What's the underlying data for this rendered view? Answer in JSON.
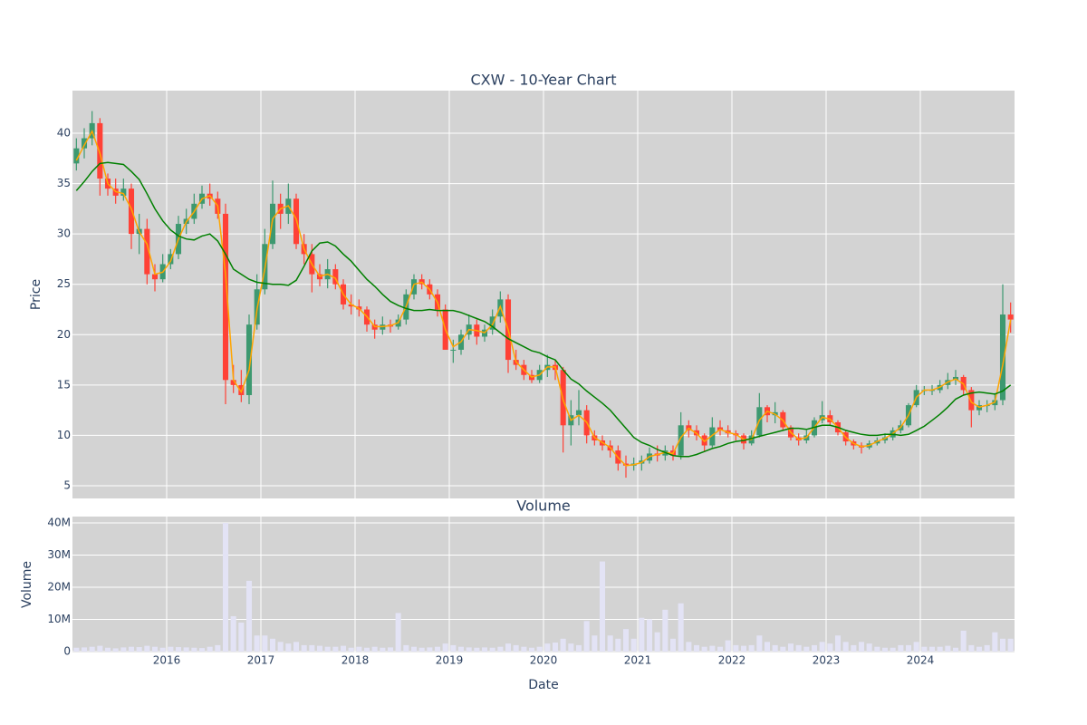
{
  "chart_data": [
    {
      "type": "candlestick",
      "title": "CXW - 10-Year Chart",
      "y_label": "Price",
      "x": [
        "2015-01",
        "2015-02",
        "2015-03",
        "2015-04",
        "2015-05",
        "2015-06",
        "2015-07",
        "2015-08",
        "2015-09",
        "2015-10",
        "2015-11",
        "2015-12",
        "2016-01",
        "2016-02",
        "2016-03",
        "2016-04",
        "2016-05",
        "2016-06",
        "2016-07",
        "2016-08",
        "2016-09",
        "2016-10",
        "2016-11",
        "2016-12",
        "2017-01",
        "2017-02",
        "2017-03",
        "2017-04",
        "2017-05",
        "2017-06",
        "2017-07",
        "2017-08",
        "2017-09",
        "2017-10",
        "2017-11",
        "2017-12",
        "2018-01",
        "2018-02",
        "2018-03",
        "2018-04",
        "2018-05",
        "2018-06",
        "2018-07",
        "2018-08",
        "2018-09",
        "2018-10",
        "2018-11",
        "2018-12",
        "2019-01",
        "2019-02",
        "2019-03",
        "2019-04",
        "2019-05",
        "2019-06",
        "2019-07",
        "2019-08",
        "2019-09",
        "2019-10",
        "2019-11",
        "2019-12",
        "2020-01",
        "2020-02",
        "2020-03",
        "2020-04",
        "2020-05",
        "2020-06",
        "2020-07",
        "2020-08",
        "2020-09",
        "2020-10",
        "2020-11",
        "2020-12",
        "2021-01",
        "2021-02",
        "2021-03",
        "2021-04",
        "2021-05",
        "2021-06",
        "2021-07",
        "2021-08",
        "2021-09",
        "2021-10",
        "2021-11",
        "2021-12",
        "2022-01",
        "2022-02",
        "2022-03",
        "2022-04",
        "2022-05",
        "2022-06",
        "2022-07",
        "2022-08",
        "2022-09",
        "2022-10",
        "2022-11",
        "2022-12",
        "2023-01",
        "2023-02",
        "2023-03",
        "2023-04",
        "2023-05",
        "2023-06",
        "2023-07",
        "2023-08",
        "2023-09",
        "2023-10",
        "2023-11",
        "2023-12",
        "2024-01",
        "2024-02",
        "2024-03",
        "2024-04",
        "2024-05",
        "2024-06",
        "2024-07",
        "2024-08",
        "2024-09",
        "2024-10",
        "2024-11",
        "2024-12"
      ],
      "open": [
        37,
        38.5,
        39.5,
        41,
        35.5,
        34.5,
        33.8,
        34.5,
        30,
        30.5,
        26,
        25.5,
        27,
        28,
        31,
        31.5,
        33,
        34,
        33.5,
        32,
        15.5,
        15,
        14,
        21,
        24.5,
        29,
        33,
        32,
        33.5,
        29,
        28,
        26,
        25.5,
        26.5,
        25,
        23,
        22.8,
        22.5,
        21,
        20.5,
        21,
        20.8,
        21.5,
        24,
        25.5,
        25,
        24,
        22.5,
        18.5,
        18.5,
        20,
        21,
        19.8,
        20.5,
        21.8,
        23.5,
        17.5,
        17,
        16,
        15.5,
        16.5,
        17,
        16.5,
        11,
        12,
        12.5,
        10,
        9.5,
        9,
        8.5,
        7.2,
        7,
        7.2,
        7.5,
        8.2,
        8,
        8.5,
        8,
        11,
        10.5,
        10,
        9,
        10.8,
        10.5,
        10.2,
        10,
        9.2,
        10,
        12.8,
        12,
        12.3,
        10.8,
        9.8,
        9.5,
        10,
        11.5,
        12,
        11.3,
        10.3,
        9.4,
        9,
        8.8,
        9.2,
        9.5,
        9.8,
        10.5,
        11,
        13,
        14.5,
        14.5,
        14.5,
        15,
        15.5,
        15.8,
        14.5,
        12.5,
        13,
        13,
        13.5,
        22
      ],
      "high": [
        39.5,
        40.5,
        42.2,
        41.5,
        36,
        35.5,
        35.5,
        35,
        32,
        31.5,
        27,
        28,
        28.5,
        31.8,
        32.5,
        34,
        34.8,
        35,
        34.2,
        33,
        17,
        16.5,
        22,
        26,
        30.5,
        35.3,
        34,
        35,
        34,
        30,
        29,
        27,
        27.5,
        27,
        25.5,
        24,
        23.5,
        22.8,
        21.5,
        21.8,
        21.5,
        22,
        24.5,
        26,
        26,
        25.5,
        24.5,
        23,
        19.5,
        20.5,
        22,
        21.5,
        21,
        22.5,
        24.3,
        24,
        18.5,
        17.5,
        16.5,
        17,
        18,
        17.5,
        16.8,
        13.5,
        14.5,
        13,
        10.5,
        10,
        9.5,
        9,
        8,
        7.8,
        8,
        8.8,
        9,
        9,
        9,
        12.3,
        11.5,
        11,
        10.2,
        11.8,
        11.5,
        11,
        10.5,
        10.2,
        10.5,
        14.2,
        13,
        13.3,
        12.5,
        11,
        10.2,
        10.5,
        11.8,
        13.4,
        12.5,
        11.5,
        10.5,
        9.6,
        9.3,
        9.5,
        9.8,
        10.2,
        10.8,
        11.5,
        13.2,
        15,
        14.9,
        15,
        15.5,
        16.2,
        16.5,
        16,
        14.8,
        13.5,
        13.5,
        14.2,
        25,
        23.2
      ],
      "low": [
        36.3,
        37.5,
        38.8,
        33.8,
        33.8,
        33,
        33.3,
        28.5,
        28,
        25,
        24.3,
        25.2,
        26.5,
        27.5,
        30,
        31,
        32.5,
        32.8,
        31.5,
        13.1,
        14.2,
        13.3,
        13.1,
        20.5,
        24,
        28.5,
        30.5,
        31,
        28.5,
        27,
        24.2,
        24.8,
        24.6,
        24.5,
        22.5,
        22,
        21.8,
        20.3,
        19.6,
        20,
        20.2,
        20.5,
        21,
        23.5,
        24.5,
        23.5,
        21.8,
        18.6,
        17.2,
        18,
        19.5,
        19,
        19.3,
        20,
        21.2,
        16.2,
        16.5,
        15.5,
        15.2,
        15.2,
        15.8,
        15.5,
        8.3,
        9,
        11,
        9.2,
        9,
        8.5,
        7.8,
        6.5,
        5.8,
        6.5,
        6.5,
        7.2,
        7.4,
        7.5,
        7.5,
        7.6,
        9.8,
        9.5,
        8.4,
        8.8,
        10,
        9.8,
        9.5,
        8.6,
        9,
        9.8,
        11.3,
        11.2,
        10.5,
        9.5,
        9,
        9.2,
        9.8,
        11.2,
        11,
        10,
        9,
        8.6,
        8.2,
        8.6,
        9,
        9.2,
        9.5,
        10.2,
        10.8,
        12.8,
        14,
        14,
        14.2,
        14.6,
        15,
        14,
        10.8,
        12,
        12.3,
        12.5,
        13,
        20.2
      ],
      "close": [
        38.5,
        39.5,
        41,
        35.5,
        34.5,
        33.8,
        34.5,
        30,
        30.5,
        26,
        25.5,
        27,
        28,
        31,
        31.5,
        33,
        34,
        33.5,
        32,
        15.5,
        15,
        14,
        21,
        24.5,
        29,
        33,
        32,
        33.5,
        29,
        28,
        26,
        25.5,
        26.5,
        25,
        23,
        22.8,
        22.5,
        21,
        20.5,
        21,
        20.8,
        21.5,
        24,
        25.5,
        25,
        24,
        22.5,
        18.5,
        18.5,
        20,
        21,
        19.8,
        20.5,
        21.8,
        23.5,
        17.5,
        17,
        16,
        15.5,
        16.5,
        17,
        16.5,
        11,
        12,
        12.5,
        10,
        9.5,
        9,
        8.5,
        7.2,
        7,
        7.2,
        7.5,
        8.2,
        8,
        8.5,
        8,
        11,
        10.5,
        10,
        9,
        10.8,
        10.5,
        10.2,
        10,
        9.2,
        10,
        12.8,
        12,
        12.3,
        10.8,
        9.8,
        9.5,
        10,
        11.5,
        12,
        11.3,
        10.3,
        9.4,
        9,
        8.8,
        9.2,
        9.5,
        9.8,
        10.5,
        11,
        13,
        14.5,
        14.5,
        14.5,
        15,
        15.5,
        15.8,
        14.5,
        12.5,
        13,
        13,
        13.5,
        22,
        21.5
      ],
      "increasing_color": "#3d9970",
      "decreasing_color": "#ff4136",
      "series": [
        {
          "color": "#ffa500",
          "values": [
            37.3,
            38.8,
            40.2,
            38,
            35,
            34.2,
            34,
            32.5,
            30.2,
            29,
            26,
            26.2,
            27.3,
            29.5,
            31.2,
            32.2,
            33.5,
            33.8,
            32.8,
            26,
            15.5,
            14.3,
            16.5,
            22.5,
            26.5,
            31.5,
            32.5,
            32.8,
            31.5,
            28.5,
            27,
            25.8,
            26,
            25.6,
            24,
            23,
            22.6,
            21.8,
            20.8,
            20.8,
            20.9,
            21.2,
            22.8,
            25,
            25.2,
            24.5,
            23.2,
            20.5,
            18.8,
            19.3,
            20.5,
            20.4,
            20.2,
            21,
            22.8,
            20.5,
            17.3,
            16.5,
            15.8,
            16,
            16.8,
            16.8,
            13.5,
            11.5,
            12,
            11.3,
            9.8,
            9.3,
            8.8,
            7.8,
            7,
            7.1,
            7.3,
            7.9,
            8.1,
            8.3,
            8.2,
            9.8,
            10.7,
            10.2,
            9.4,
            10,
            10.6,
            10.3,
            10.1,
            9.6,
            9.6,
            11.5,
            12.4,
            12.1,
            11.5,
            10.3,
            9.6,
            9.8,
            10.8,
            11.8,
            11.6,
            10.8,
            9.8,
            9.2,
            8.9,
            9,
            9.4,
            9.7,
            10.2,
            10.8,
            12,
            13.8,
            14.5,
            14.5,
            14.8,
            15.3,
            15.6,
            15.1,
            13.3,
            12.8,
            13,
            13.3,
            17,
            21.5
          ]
        },
        {
          "color": "#008000",
          "values": [
            34.3,
            35.2,
            36.2,
            37,
            37.1,
            37,
            36.9,
            36.2,
            35.4,
            34,
            32.5,
            31.3,
            30.4,
            29.8,
            29.5,
            29.4,
            29.8,
            30,
            29.3,
            28,
            26.5,
            26,
            25.5,
            25.2,
            25.1,
            25,
            25,
            24.9,
            25.4,
            26.8,
            28.3,
            29.1,
            29.2,
            28.8,
            28,
            27.3,
            26.4,
            25.5,
            24.8,
            24,
            23.3,
            22.9,
            22.6,
            22.4,
            22.4,
            22.5,
            22.4,
            22.4,
            22.4,
            22.2,
            21.9,
            21.6,
            21.3,
            20.8,
            20.2,
            19.6,
            19.2,
            18.8,
            18.4,
            18.2,
            17.8,
            17.5,
            16.5,
            15.6,
            15.1,
            14.4,
            13.8,
            13.2,
            12.5,
            11.6,
            10.7,
            9.8,
            9.3,
            9,
            8.6,
            8.3,
            8,
            7.9,
            7.9,
            8.1,
            8.4,
            8.7,
            8.9,
            9.2,
            9.4,
            9.5,
            9.7,
            9.9,
            10.1,
            10.3,
            10.5,
            10.7,
            10.7,
            10.6,
            10.8,
            11,
            11,
            10.8,
            10.5,
            10.3,
            10.1,
            10,
            10,
            10.1,
            10.1,
            10,
            10.1,
            10.5,
            10.9,
            11.5,
            12.1,
            12.8,
            13.6,
            14,
            14.2,
            14.3,
            14.2,
            14.1,
            14.4,
            15
          ]
        }
      ],
      "xlim": [
        "2015-01",
        "2025-01"
      ],
      "xticks": [
        "2016",
        "2017",
        "2018",
        "2019",
        "2020",
        "2021",
        "2022",
        "2023",
        "2024"
      ],
      "ylim": [
        3.74,
        44.23
      ],
      "yticks": [
        5,
        10,
        15,
        20,
        25,
        30,
        35,
        40
      ],
      "grid": true,
      "plot_background": "#d3d3d3"
    },
    {
      "type": "bar",
      "title": "Volume",
      "y_label": "Volume",
      "x_label": "Date",
      "x": [
        "2015-01",
        "2015-02",
        "2015-03",
        "2015-04",
        "2015-05",
        "2015-06",
        "2015-07",
        "2015-08",
        "2015-09",
        "2015-10",
        "2015-11",
        "2015-12",
        "2016-01",
        "2016-02",
        "2016-03",
        "2016-04",
        "2016-05",
        "2016-06",
        "2016-07",
        "2016-08",
        "2016-09",
        "2016-10",
        "2016-11",
        "2016-12",
        "2017-01",
        "2017-02",
        "2017-03",
        "2017-04",
        "2017-05",
        "2017-06",
        "2017-07",
        "2017-08",
        "2017-09",
        "2017-10",
        "2017-11",
        "2017-12",
        "2018-01",
        "2018-02",
        "2018-03",
        "2018-04",
        "2018-05",
        "2018-06",
        "2018-07",
        "2018-08",
        "2018-09",
        "2018-10",
        "2018-11",
        "2018-12",
        "2019-01",
        "2019-02",
        "2019-03",
        "2019-04",
        "2019-05",
        "2019-06",
        "2019-07",
        "2019-08",
        "2019-09",
        "2019-10",
        "2019-11",
        "2019-12",
        "2020-01",
        "2020-02",
        "2020-03",
        "2020-04",
        "2020-05",
        "2020-06",
        "2020-07",
        "2020-08",
        "2020-09",
        "2020-10",
        "2020-11",
        "2020-12",
        "2021-01",
        "2021-02",
        "2021-03",
        "2021-04",
        "2021-05",
        "2021-06",
        "2021-07",
        "2021-08",
        "2021-09",
        "2021-10",
        "2021-11",
        "2021-12",
        "2022-01",
        "2022-02",
        "2022-03",
        "2022-04",
        "2022-05",
        "2022-06",
        "2022-07",
        "2022-08",
        "2022-09",
        "2022-10",
        "2022-11",
        "2022-12",
        "2023-01",
        "2023-02",
        "2023-03",
        "2023-04",
        "2023-05",
        "2023-06",
        "2023-07",
        "2023-08",
        "2023-09",
        "2023-10",
        "2023-11",
        "2023-12",
        "2024-01",
        "2024-02",
        "2024-03",
        "2024-04",
        "2024-05",
        "2024-06",
        "2024-07",
        "2024-08",
        "2024-09",
        "2024-10",
        "2024-11",
        "2024-12"
      ],
      "values": [
        1200000,
        1300000,
        1500000,
        1800000,
        1200000,
        1000000,
        1300000,
        1500000,
        1400000,
        1800000,
        1500000,
        1200000,
        1500000,
        1400000,
        1300000,
        1200000,
        1100000,
        1500000,
        2000000,
        40000000,
        11000000,
        9000000,
        22000000,
        5000000,
        5000000,
        4000000,
        3000000,
        2500000,
        3000000,
        2000000,
        2000000,
        1800000,
        1500000,
        1500000,
        1800000,
        1200000,
        1500000,
        1200000,
        1500000,
        1200000,
        1300000,
        12000000,
        2000000,
        1500000,
        1200000,
        1300000,
        1500000,
        2500000,
        2000000,
        1500000,
        1300000,
        1200000,
        1300000,
        1200000,
        1500000,
        2500000,
        2000000,
        1500000,
        1200000,
        1500000,
        2500000,
        2800000,
        4000000,
        2500000,
        2000000,
        9500000,
        5000000,
        28000000,
        5000000,
        4000000,
        7000000,
        4000000,
        10500000,
        10000000,
        6000000,
        13000000,
        4000000,
        15000000,
        3000000,
        2000000,
        1500000,
        1800000,
        1500000,
        3500000,
        2000000,
        1800000,
        2000000,
        5000000,
        3000000,
        2000000,
        1500000,
        2500000,
        2000000,
        1500000,
        2000000,
        3000000,
        2500000,
        5000000,
        3000000,
        2000000,
        3000000,
        2500000,
        1500000,
        1200000,
        1200000,
        2000000,
        2000000,
        3000000,
        1500000,
        1500000,
        1500000,
        1800000,
        1200000,
        6500000,
        2000000,
        1500000,
        2000000,
        6000000,
        4000000,
        4000000
      ],
      "color": "#e3e3f5",
      "xlim": [
        "2015-01",
        "2025-01"
      ],
      "xticks": [
        "2016",
        "2017",
        "2018",
        "2019",
        "2020",
        "2021",
        "2022",
        "2023",
        "2024"
      ],
      "ylim": [
        -280000,
        41970000
      ],
      "yticks": [
        0,
        {
          "value": 10000000,
          "label": "10M"
        },
        {
          "value": 20000000,
          "label": "20M"
        },
        {
          "value": 30000000,
          "label": "30M"
        },
        {
          "value": 40000000,
          "label": "40M"
        }
      ],
      "grid": true,
      "plot_background": "#d3d3d3"
    }
  ]
}
